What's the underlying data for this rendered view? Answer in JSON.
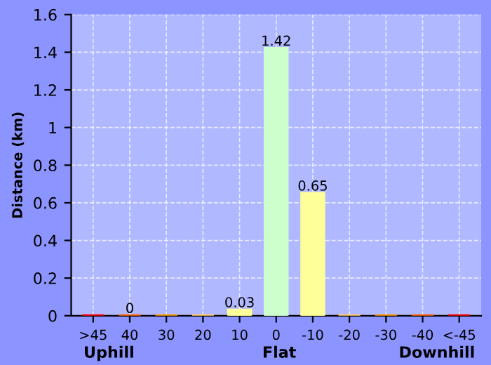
{
  "chart_data": {
    "type": "bar",
    "ylabel": "Distance (km)",
    "categories": [
      ">45",
      "40",
      "30",
      "20",
      "10",
      "0",
      "-10",
      "-20",
      "-30",
      "-40",
      "<-45"
    ],
    "values": [
      0,
      0,
      0,
      0,
      0.03,
      1.42,
      0.65,
      0,
      0,
      0,
      0
    ],
    "colors": [
      "#ff0000",
      "#ff6600",
      "#ff9900",
      "#ffcc66",
      "#ffff99",
      "#ccffcc",
      "#ffff99",
      "#ffcc66",
      "#ff9900",
      "#ff6600",
      "#ff0000"
    ],
    "value_labels": [
      null,
      "0",
      null,
      null,
      "0.03",
      "1.42",
      "0.65",
      null,
      null,
      null,
      null
    ],
    "ylim": [
      0,
      1.6
    ],
    "yticks": [
      0,
      0.2,
      0.4,
      0.6,
      0.8,
      1,
      1.2,
      1.4,
      1.6
    ],
    "grid": true,
    "annotations": [
      "Uphill",
      "Flat",
      "Downhill"
    ]
  }
}
